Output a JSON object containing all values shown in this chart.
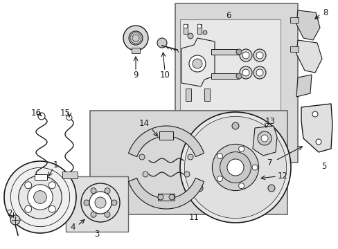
{
  "bg_color": "#ffffff",
  "lc": "#1a1a1a",
  "gray_box": "#d8d8d8",
  "gray_box2": "#e0e0e0",
  "figsize": [
    4.89,
    3.6
  ],
  "dpi": 100,
  "fs": 8.5
}
